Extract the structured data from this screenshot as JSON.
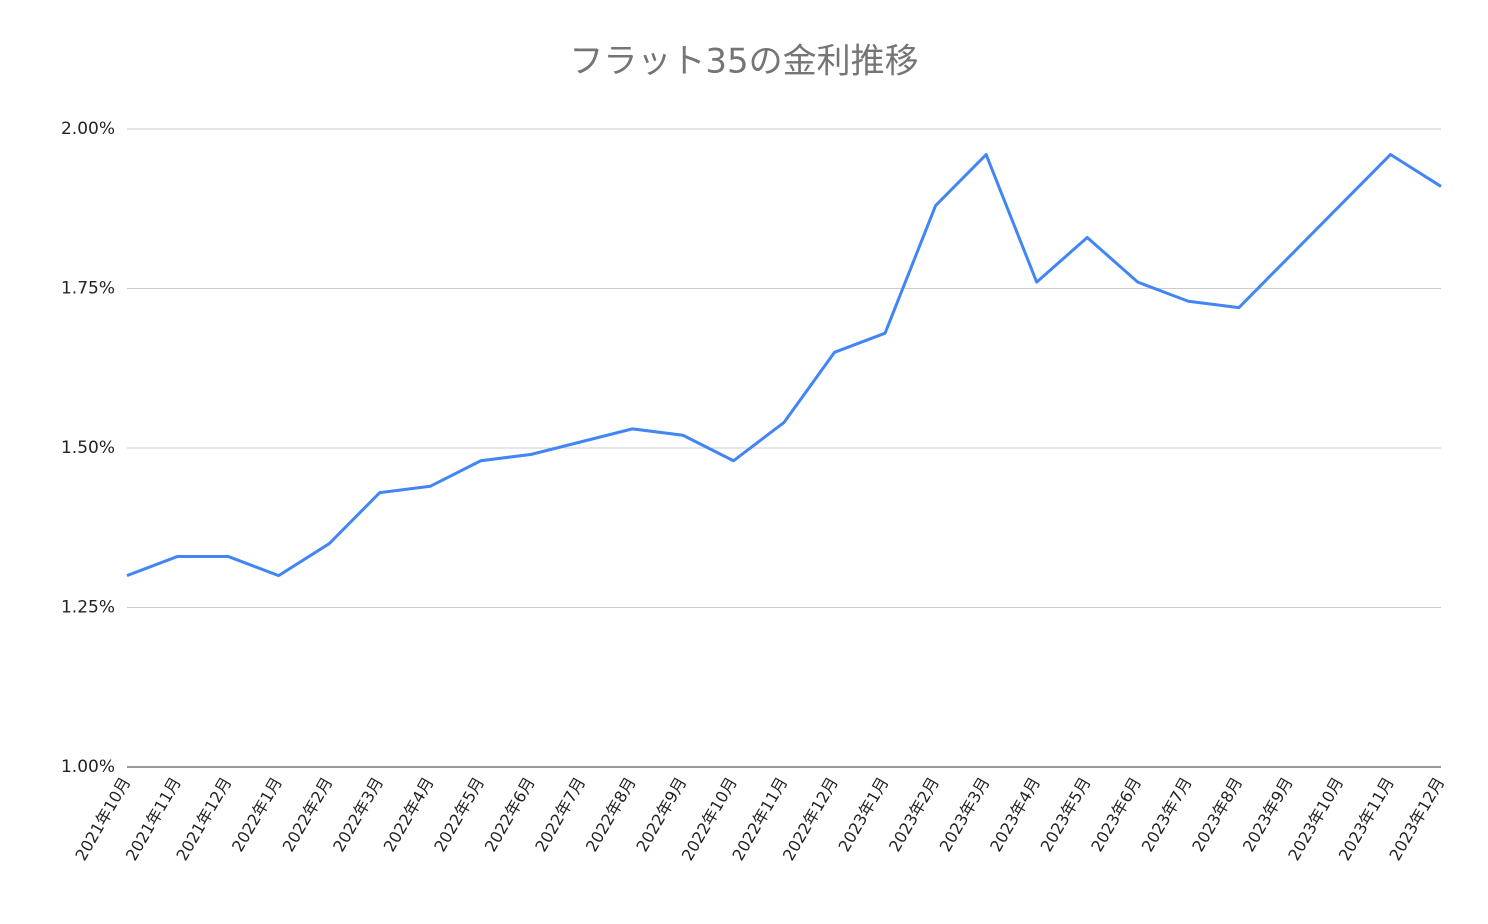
{
  "chart_data": {
    "type": "line",
    "title": "フラット35の金利推移",
    "categories": [
      "2021年10月",
      "2021年11月",
      "2021年12月",
      "2022年1月",
      "2022年2月",
      "2022年3月",
      "2022年4月",
      "2022年5月",
      "2022年6月",
      "2022年7月",
      "2022年8月",
      "2022年9月",
      "2022年10月",
      "2022年11月",
      "2022年12月",
      "2023年1月",
      "2023年2月",
      "2023年3月",
      "2023年4月",
      "2023年5月",
      "2023年6月",
      "2023年7月",
      "2023年8月",
      "2023年9月",
      "2023年10月",
      "2023年11月",
      "2023年12月"
    ],
    "series": [
      {
        "name": "フラット35",
        "color": "#4285f4",
        "values": [
          1.3,
          1.33,
          1.33,
          1.3,
          1.35,
          1.43,
          1.44,
          1.48,
          1.49,
          1.51,
          1.53,
          1.52,
          1.48,
          1.54,
          1.65,
          1.68,
          1.88,
          1.96,
          1.76,
          1.83,
          1.76,
          1.73,
          1.72,
          1.8,
          1.88,
          1.96,
          1.91
        ]
      }
    ],
    "ylim": [
      1.0,
      2.0
    ],
    "yticks": [
      {
        "value": 1.0,
        "label": "1.00%"
      },
      {
        "value": 1.25,
        "label": "1.25%"
      },
      {
        "value": 1.5,
        "label": "1.50%"
      },
      {
        "value": 1.75,
        "label": "1.75%"
      },
      {
        "value": 2.0,
        "label": "2.00%"
      }
    ],
    "grid": true
  }
}
